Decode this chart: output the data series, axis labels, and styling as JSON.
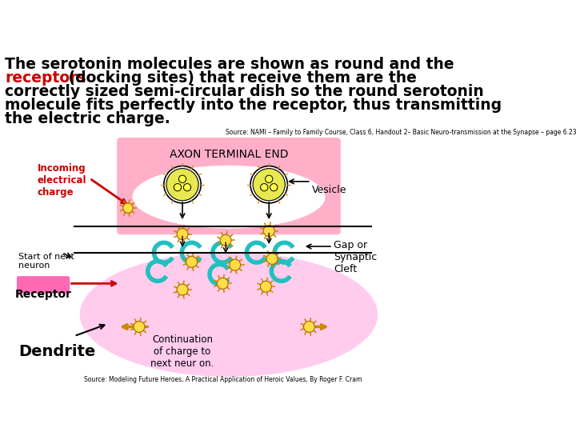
{
  "title_line1": "The serotonin molecules are shown as round and the",
  "title_line2_red": "receptors",
  "title_line2_black": " (docking sites) that receive them are the",
  "title_line3": "correctly sized semi-circular dish so the round serotonin",
  "title_line4": "molecule fits perfectly into the receptor, thus transmitting",
  "title_line5": "the electric charge.",
  "source_top": "Source: NAMI – Family to Family Course, Class 6, Handout 2– Basic Neuro-transmission at the Synapse – page 6.23",
  "source_bottom": "Source: Modeling Future Heroes, A Practical Application of Heroic Values, By Roger F. Cram",
  "axon_label": "AXON TERMINAL END",
  "incoming_label": "Incoming\nelectrical\ncharge",
  "vesicle_label": "Vesicle",
  "gap_label": "Gap or\nSynaptic\nCleft",
  "start_next_label": "Start of next\nneuron",
  "receptor_label": "Receptor",
  "dendrite_label": "Dendrite",
  "continuation_label": "Continuation\nof charge to\nnext neur on.",
  "bg_color": "#ffffff",
  "axon_color": "#ffb6c1",
  "dendrite_color": "#ffb6d9",
  "vesicle_fill": "#ffffff",
  "molecule_color": "#ffff00",
  "receptor_color": "#40e0d0",
  "red_color": "#cc0000",
  "pink_bg": "#ff69b4"
}
